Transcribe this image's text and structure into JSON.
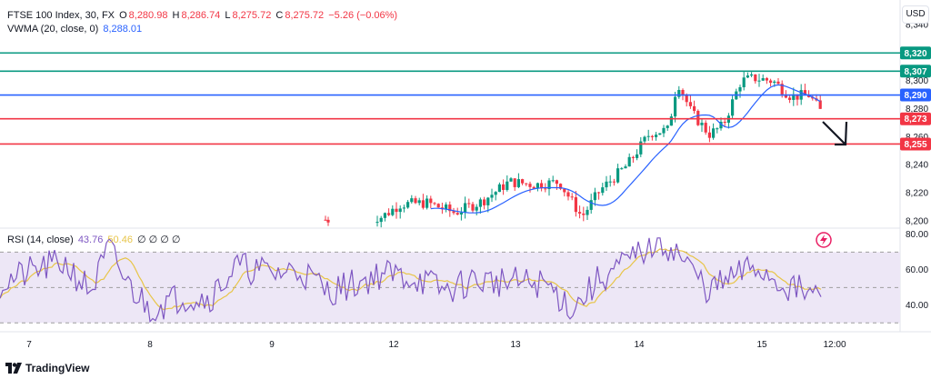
{
  "header": {
    "symbol": "FTSE 100 Index, 30, FX",
    "open_label": "O",
    "open": "8,280.98",
    "high_label": "H",
    "high": "8,286.74",
    "low_label": "L",
    "low": "8,275.72",
    "close_label": "C",
    "close": "8,275.72",
    "change": "−5.26 (−0.06%)",
    "vwma_label": "VWMA (20, close, 0)",
    "vwma_value": "8,288.01",
    "currency_button": "USD"
  },
  "rsi_legend": {
    "label": "RSI (14, close)",
    "value": "43.76",
    "ma_value": "50.46",
    "extras": "∅ ∅ ∅ ∅"
  },
  "price_axis": {
    "ticks": [
      "8,340",
      "8,320",
      "8,300",
      "8,280",
      "8,260",
      "8,240",
      "8,220",
      "8,200"
    ],
    "tags": [
      {
        "value": "8,320",
        "color": "#089981",
        "text": "#ffffff"
      },
      {
        "value": "8,307",
        "color": "#089981",
        "text": "#ffffff"
      },
      {
        "value": "8,290",
        "color": "#2962ff",
        "text": "#ffffff"
      },
      {
        "value": "8,273",
        "color": "#f23645",
        "text": "#ffffff"
      },
      {
        "value": "8,255",
        "color": "#f23645",
        "text": "#ffffff"
      }
    ]
  },
  "rsi_axis": {
    "ticks": [
      "80.00",
      "60.00",
      "40.00"
    ]
  },
  "time_axis": {
    "labels": [
      "7",
      "8",
      "9",
      "12",
      "13",
      "14",
      "15",
      "12:00"
    ]
  },
  "colors": {
    "up": "#089981",
    "down": "#f23645",
    "vwma": "#2962ff",
    "rsi": "#7e57c2",
    "rsi_ma": "#e8c548",
    "rsi_band": "#ede7f6",
    "support_resistance_green": "#089981",
    "support_resistance_red": "#f23645"
  },
  "chart_data": {
    "type": "candlestick",
    "horizontal_lines": [
      8320,
      8307,
      8290,
      8273,
      8255
    ],
    "rsi_levels": [
      70,
      50,
      30
    ],
    "price_ylim": [
      8195,
      8350
    ],
    "rsi_ylim": [
      25,
      82
    ]
  },
  "footer": {
    "brand": "TradingView"
  }
}
